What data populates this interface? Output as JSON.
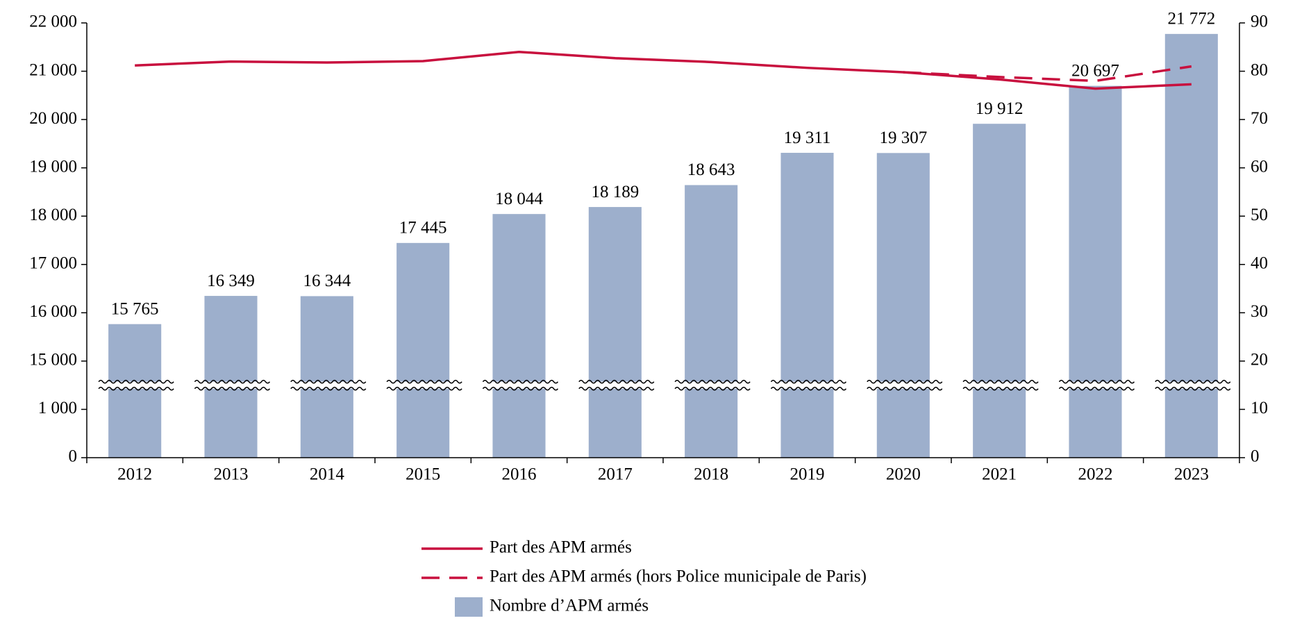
{
  "chart_data": {
    "type": "bar",
    "categories": [
      "2012",
      "2013",
      "2014",
      "2015",
      "2016",
      "2017",
      "2018",
      "2019",
      "2020",
      "2021",
      "2022",
      "2023"
    ],
    "series": [
      {
        "name": "Nombre d’APM armés",
        "type": "bar",
        "color": "#9dafcc",
        "values": [
          15765,
          16349,
          16344,
          17445,
          18044,
          18189,
          18643,
          19311,
          19307,
          19912,
          20697,
          21772
        ],
        "value_labels": [
          "15 765",
          "16 349",
          "16 344",
          "17 445",
          "18 044",
          "18 189",
          "18 643",
          "19 311",
          "19 307",
          "19 912",
          "20 697",
          "21 772"
        ]
      },
      {
        "name": "Part des APM armés",
        "type": "line",
        "axis": "y2",
        "color": "#c8103e",
        "dashed": false,
        "values": [
          81.2,
          82.0,
          81.8,
          82.1,
          84.0,
          82.7,
          81.9,
          80.7,
          79.8,
          78.3,
          76.4,
          77.3
        ]
      },
      {
        "name": "Part des APM armés (hors Police municipale de Paris)",
        "type": "line",
        "axis": "y2",
        "color": "#c8103e",
        "dashed": true,
        "values": [
          null,
          null,
          null,
          null,
          null,
          null,
          null,
          null,
          79.8,
          78.8,
          78.0,
          81.0
        ]
      }
    ],
    "ylim": [
      0,
      22000
    ],
    "yticks": [
      0,
      {
        "value": 1000,
        "label": "1 000"
      },
      {
        "value": 15000,
        "label": "15 000"
      },
      {
        "value": 16000,
        "label": "16 000"
      },
      {
        "value": 17000,
        "label": "17 000"
      },
      {
        "value": 18000,
        "label": "18 000"
      },
      {
        "value": 19000,
        "label": "19 000"
      },
      {
        "value": 20000,
        "label": "20 000"
      },
      {
        "value": 21000,
        "label": "21 000"
      },
      {
        "value": 22000,
        "label": "22 000"
      }
    ],
    "y_break": [
      1000,
      15000
    ],
    "y2lim": [
      0,
      90
    ],
    "y2ticks": [
      0,
      10,
      20,
      30,
      40,
      50,
      60,
      70,
      80,
      90
    ],
    "legend": "bottom"
  }
}
